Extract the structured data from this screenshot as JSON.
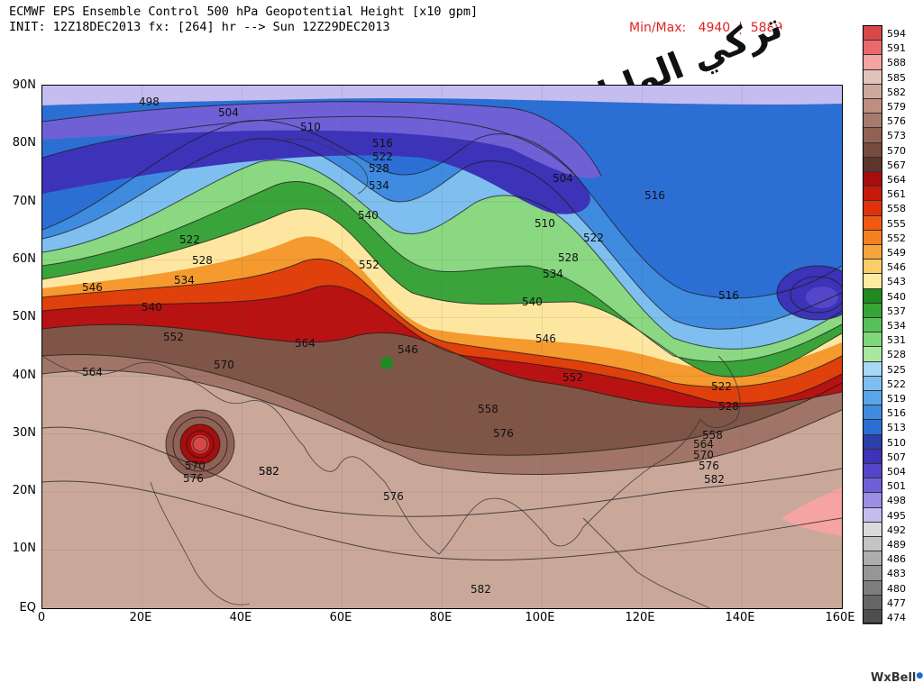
{
  "header": {
    "title": "ECMWF EPS Ensemble Control 500 hPa Geopotential Height [x10 gpm]",
    "init": "INIT: 12Z18DEC2013 fx: [264] hr --> Sun 12Z29DEC2013",
    "minmax": "Min/Max:   4940  |  5889",
    "watermark": "تركي الوايلي"
  },
  "axes": {
    "lat_labels": [
      "90N",
      "80N",
      "70N",
      "60N",
      "50N",
      "40N",
      "30N",
      "20N",
      "10N",
      "EQ"
    ],
    "lon_labels": [
      "0",
      "20E",
      "40E",
      "60E",
      "80E",
      "100E",
      "120E",
      "140E",
      "160E"
    ]
  },
  "legend": {
    "levels": [
      "594",
      "591",
      "588",
      "585",
      "582",
      "579",
      "576",
      "573",
      "570",
      "567",
      "564",
      "561",
      "558",
      "555",
      "552",
      "549",
      "546",
      "543",
      "540",
      "537",
      "534",
      "531",
      "528",
      "525",
      "522",
      "519",
      "516",
      "513",
      "510",
      "507",
      "504",
      "501",
      "498",
      "495",
      "492",
      "489",
      "486",
      "483",
      "480",
      "477",
      "474"
    ],
    "colors": [
      "#d94848",
      "#e86a6a",
      "#f5a3a3",
      "#e2c3bb",
      "#cfa89c",
      "#bc8f82",
      "#a67a6c",
      "#8f6255",
      "#774b3f",
      "#5e352c",
      "#a80d0d",
      "#c81a0a",
      "#e0320a",
      "#f05a10",
      "#f58020",
      "#f7a53a",
      "#fbcd6a",
      "#fdeaa3",
      "#1f8a1f",
      "#36a436",
      "#58c058",
      "#80d67a",
      "#a8e8a0",
      "#a8d8f5",
      "#7fbff0",
      "#58a5e8",
      "#3e8be0",
      "#2c6fd4",
      "#2a3fa8",
      "#3c33b8",
      "#5446c8",
      "#6f60d6",
      "#9a8ee6",
      "#c5bdf0",
      "#dadada",
      "#c4c4c4",
      "#adadad",
      "#969696",
      "#7e7e7e",
      "#666666",
      "#4e4e4e"
    ]
  },
  "contour_labels": [
    "498",
    "504",
    "510",
    "516",
    "522",
    "528",
    "534",
    "540",
    "504",
    "510",
    "516",
    "522",
    "528",
    "534",
    "540",
    "546",
    "552",
    "546",
    "552",
    "558",
    "564",
    "570",
    "576",
    "582",
    "522",
    "528",
    "534",
    "540",
    "546",
    "552",
    "564",
    "570",
    "576",
    "582",
    "576",
    "582",
    "516",
    "522",
    "528",
    "558",
    "564",
    "570",
    "576",
    "582"
  ],
  "logo": "WxBell"
}
